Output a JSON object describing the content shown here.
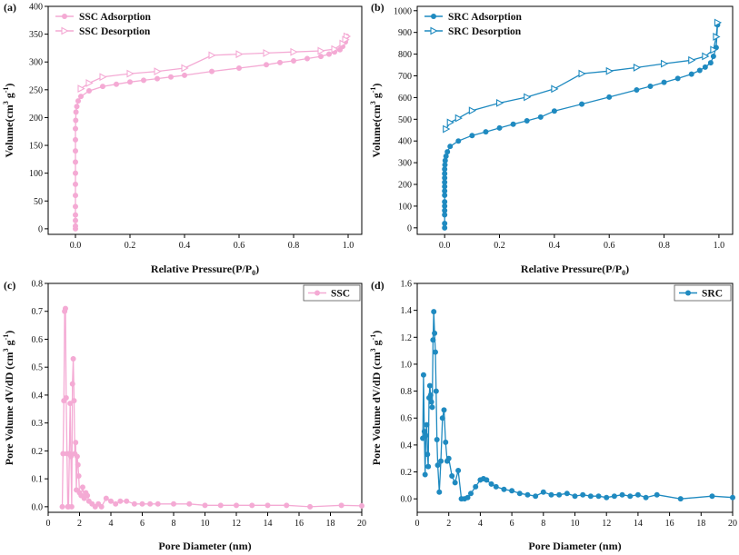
{
  "chart_data": [
    {
      "panel_label": "(a)",
      "type": "line",
      "xlabel": "Relative Pressure(P/P0)",
      "xlabel_main": "Relative Pressure(P/P",
      "xlabel_sub": "0",
      "xlabel_end": ")",
      "ylabel": "Volume(cm3 g-1)",
      "ylabel_parts": [
        "Volume(cm",
        "3",
        " g",
        "-1",
        ")"
      ],
      "xlim": [
        -0.1,
        1.05
      ],
      "ylim": [
        -10,
        400
      ],
      "xticks": [
        0.0,
        0.2,
        0.4,
        0.6,
        0.8,
        1.0
      ],
      "xtick_labels": [
        "0.0",
        "0.2",
        "0.4",
        "0.6",
        "0.8",
        "1.0"
      ],
      "yticks": [
        0,
        50,
        100,
        150,
        200,
        250,
        300,
        350,
        400
      ],
      "ytick_labels": [
        "0",
        "50",
        "100",
        "150",
        "200",
        "250",
        "300",
        "350",
        "400"
      ],
      "legend": [
        "SSC Adsorption",
        "SSC Desorption"
      ],
      "legend_position": "top-left",
      "series": [
        {
          "name": "SSC Adsorption",
          "marker": "circle",
          "x": [
            0.0,
            0.0,
            0.0,
            0.0,
            0.0,
            0.0,
            0.0,
            0.0,
            0.0,
            0.0,
            0.0,
            0.0,
            0.001,
            0.002,
            0.005,
            0.01,
            0.02,
            0.05,
            0.1,
            0.15,
            0.2,
            0.25,
            0.3,
            0.35,
            0.4,
            0.5,
            0.6,
            0.7,
            0.75,
            0.8,
            0.85,
            0.9,
            0.93,
            0.95,
            0.97,
            0.98,
            0.99,
            0.995
          ],
          "y": [
            0,
            5,
            15,
            25,
            40,
            60,
            80,
            100,
            120,
            140,
            160,
            180,
            195,
            210,
            220,
            230,
            238,
            248,
            256,
            260,
            264,
            267,
            270,
            273,
            276,
            283,
            289,
            295,
            299,
            302,
            306,
            310,
            314,
            318,
            322,
            328,
            336,
            346
          ]
        },
        {
          "name": "SSC Desorption",
          "marker": "triangle-right",
          "x": [
            0.995,
            0.99,
            0.98,
            0.95,
            0.9,
            0.8,
            0.7,
            0.6,
            0.5,
            0.4,
            0.3,
            0.2,
            0.1,
            0.05,
            0.02
          ],
          "y": [
            346,
            340,
            333,
            323,
            320,
            318,
            316,
            314,
            312,
            289,
            283,
            279,
            273,
            262,
            252
          ]
        }
      ]
    },
    {
      "panel_label": "(b)",
      "type": "line",
      "xlabel": "Relative Pressure(P/P0)",
      "xlabel_main": "Relative Pressure(P/P",
      "xlabel_sub": "0",
      "xlabel_end": ")",
      "ylabel": "Volume(cm3 g-1)",
      "ylabel_parts": [
        "Volume(cm",
        "3",
        " g",
        "-1",
        ")"
      ],
      "xlim": [
        -0.1,
        1.05
      ],
      "ylim": [
        -30,
        1020
      ],
      "xticks": [
        0.0,
        0.2,
        0.4,
        0.6,
        0.8,
        1.0
      ],
      "xtick_labels": [
        "0.0",
        "0.2",
        "0.4",
        "0.6",
        "0.8",
        "1.0"
      ],
      "yticks": [
        0,
        100,
        200,
        300,
        400,
        500,
        600,
        700,
        800,
        900,
        1000
      ],
      "ytick_labels": [
        "0",
        "100",
        "200",
        "300",
        "400",
        "500",
        "600",
        "700",
        "800",
        "900",
        "1000"
      ],
      "legend": [
        "SRC Adsorption",
        "SRC Desorption"
      ],
      "legend_position": "top-left",
      "series": [
        {
          "name": "SRC Adsorption",
          "marker": "circle",
          "x": [
            0.0,
            0.0,
            0.0,
            0.0,
            0.0,
            0.0,
            0.0,
            0.0,
            0.0,
            0.0,
            0.0,
            0.0,
            0.0,
            0.001,
            0.002,
            0.005,
            0.01,
            0.02,
            0.05,
            0.1,
            0.15,
            0.2,
            0.25,
            0.3,
            0.35,
            0.4,
            0.5,
            0.6,
            0.7,
            0.75,
            0.8,
            0.85,
            0.9,
            0.93,
            0.95,
            0.97,
            0.98,
            0.99,
            0.995
          ],
          "y": [
            0,
            20,
            60,
            80,
            100,
            120,
            150,
            170,
            190,
            210,
            230,
            250,
            270,
            290,
            310,
            330,
            350,
            375,
            400,
            425,
            442,
            460,
            477,
            493,
            510,
            538,
            570,
            602,
            635,
            652,
            670,
            688,
            708,
            725,
            740,
            760,
            790,
            830,
            935
          ]
        },
        {
          "name": "SRC Desorption",
          "marker": "triangle-right",
          "x": [
            0.995,
            0.99,
            0.98,
            0.95,
            0.9,
            0.8,
            0.7,
            0.6,
            0.5,
            0.4,
            0.3,
            0.2,
            0.1,
            0.05,
            0.02,
            0.005
          ],
          "y": [
            945,
            880,
            820,
            790,
            772,
            756,
            738,
            722,
            710,
            640,
            602,
            575,
            540,
            505,
            485,
            455
          ]
        }
      ]
    },
    {
      "panel_label": "(c)",
      "type": "line",
      "xlabel": "Pore Diameter (nm)",
      "ylabel": "Pore Volume dV/dD (cm3 g-1)",
      "ylabel_parts": [
        "Pore Volume dV/dD (cm",
        "3",
        " g",
        "-1",
        ")"
      ],
      "xlim": [
        0,
        20
      ],
      "ylim": [
        -0.02,
        0.8
      ],
      "xticks": [
        0,
        2,
        4,
        6,
        8,
        10,
        12,
        14,
        16,
        18,
        20
      ],
      "xtick_labels": [
        "0",
        "2",
        "4",
        "6",
        "8",
        "10",
        "12",
        "14",
        "16",
        "18",
        "20"
      ],
      "yticks": [
        0.0,
        0.1,
        0.2,
        0.3,
        0.4,
        0.5,
        0.6,
        0.7,
        0.8
      ],
      "ytick_labels": [
        "0.0",
        "0.1",
        "0.2",
        "0.3",
        "0.4",
        "0.5",
        "0.6",
        "0.7",
        "0.8"
      ],
      "legend": [
        "SSC"
      ],
      "legend_position": "top-right",
      "series": [
        {
          "name": "SSC",
          "marker": "circle",
          "x": [
            0.9,
            0.95,
            1.0,
            1.05,
            1.1,
            1.15,
            1.2,
            1.25,
            1.3,
            1.35,
            1.4,
            1.45,
            1.5,
            1.55,
            1.6,
            1.65,
            1.7,
            1.75,
            1.8,
            1.85,
            1.9,
            1.95,
            2.0,
            2.1,
            2.2,
            2.3,
            2.4,
            2.5,
            2.6,
            2.8,
            3.0,
            3.2,
            3.4,
            3.7,
            4.0,
            4.3,
            4.6,
            5.0,
            5.5,
            6.0,
            6.5,
            7.0,
            8.0,
            9.0,
            10.0,
            11.0,
            12.0,
            13.0,
            14.0,
            15.2,
            16.7,
            18.7,
            20.0
          ],
          "y": [
            0.0,
            0.19,
            0.38,
            0.7,
            0.71,
            0.39,
            0.19,
            0.0,
            0.0,
            0.19,
            0.37,
            0.18,
            0.0,
            0.44,
            0.53,
            0.38,
            0.19,
            0.23,
            0.06,
            0.18,
            0.15,
            0.11,
            0.05,
            0.04,
            0.07,
            0.03,
            0.05,
            0.04,
            0.02,
            0.01,
            0.0,
            0.01,
            0.0,
            0.03,
            0.02,
            0.01,
            0.02,
            0.02,
            0.01,
            0.01,
            0.01,
            0.01,
            0.01,
            0.01,
            0.005,
            0.005,
            0.005,
            0.005,
            0.005,
            0.005,
            0.0,
            0.005,
            0.003
          ]
        }
      ]
    },
    {
      "panel_label": "(d)",
      "type": "line",
      "xlabel": "Pore Diameter (nm)",
      "ylabel": "Pore Volume dV/dD (cm3 g-1)",
      "ylabel_parts": [
        "Pore Volume dV/dD (cm",
        "3",
        " g",
        "-1",
        ")"
      ],
      "xlim": [
        0,
        20
      ],
      "ylim": [
        -0.1,
        1.6
      ],
      "xticks": [
        0,
        2,
        4,
        6,
        8,
        10,
        12,
        14,
        16,
        18,
        20
      ],
      "xtick_labels": [
        "0",
        "2",
        "4",
        "6",
        "8",
        "10",
        "12",
        "14",
        "16",
        "18",
        "20"
      ],
      "yticks": [
        0.0,
        0.2,
        0.4,
        0.6,
        0.8,
        1.0,
        1.2,
        1.4,
        1.6
      ],
      "ytick_labels": [
        "0.0",
        "0.2",
        "0.4",
        "0.6",
        "0.8",
        "1.0",
        "1.2",
        "1.4",
        "1.6"
      ],
      "legend": [
        "SRC"
      ],
      "legend_position": "top-right",
      "series": [
        {
          "name": "SRC",
          "marker": "circle",
          "x": [
            0.35,
            0.4,
            0.45,
            0.5,
            0.55,
            0.6,
            0.65,
            0.7,
            0.75,
            0.8,
            0.85,
            0.9,
            0.95,
            1.0,
            1.05,
            1.1,
            1.15,
            1.2,
            1.25,
            1.3,
            1.4,
            1.5,
            1.6,
            1.7,
            1.8,
            1.9,
            2.0,
            2.2,
            2.4,
            2.6,
            2.8,
            3.0,
            3.2,
            3.4,
            3.7,
            4.0,
            4.2,
            4.4,
            4.7,
            5.0,
            5.5,
            6.0,
            6.5,
            7.0,
            7.5,
            8.0,
            8.5,
            9.0,
            9.5,
            10.0,
            10.5,
            11.0,
            11.5,
            12.0,
            12.5,
            13.0,
            13.5,
            14.0,
            14.5,
            15.2,
            16.7,
            18.7,
            20.0
          ],
          "y": [
            0.45,
            0.92,
            0.5,
            0.18,
            0.47,
            0.55,
            0.33,
            0.24,
            0.75,
            0.84,
            0.77,
            0.72,
            0.68,
            1.18,
            1.39,
            1.23,
            1.09,
            0.8,
            0.44,
            0.25,
            0.05,
            0.28,
            0.6,
            0.66,
            0.42,
            0.28,
            0.3,
            0.17,
            0.12,
            0.21,
            0.0,
            0.0,
            0.01,
            0.04,
            0.09,
            0.14,
            0.15,
            0.14,
            0.11,
            0.09,
            0.07,
            0.06,
            0.04,
            0.03,
            0.02,
            0.05,
            0.03,
            0.03,
            0.04,
            0.02,
            0.03,
            0.02,
            0.02,
            0.01,
            0.02,
            0.03,
            0.02,
            0.03,
            0.01,
            0.03,
            0.0,
            0.02,
            0.01
          ]
        }
      ]
    }
  ],
  "colors": {
    "ssc": "#f4aad4",
    "src": "#1f8ac0",
    "axis": "#000000"
  }
}
